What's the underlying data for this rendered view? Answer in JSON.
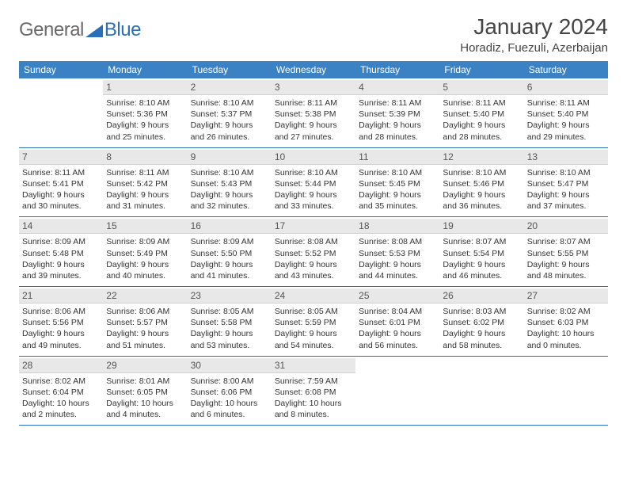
{
  "logo": {
    "part1": "General",
    "part2": "Blue"
  },
  "title": "January 2024",
  "location": "Horadiz, Fuezuli, Azerbaijan",
  "colors": {
    "header_bg": "#3b82c4",
    "header_text": "#ffffff",
    "daynum_bg": "#e8e8e8",
    "week_border": "#2a70b8",
    "logo_gray": "#6a6a6a",
    "logo_blue": "#2a70b8"
  },
  "typography": {
    "month_title_size": 28,
    "location_size": 15,
    "day_header_size": 12,
    "daynum_size": 12,
    "info_size": 10.5
  },
  "layout": {
    "columns": 7,
    "rows": 5
  },
  "day_names": [
    "Sunday",
    "Monday",
    "Tuesday",
    "Wednesday",
    "Thursday",
    "Friday",
    "Saturday"
  ],
  "weeks": [
    [
      {
        "n": "",
        "sr": "",
        "ss": "",
        "dl": ""
      },
      {
        "n": "1",
        "sr": "Sunrise: 8:10 AM",
        "ss": "Sunset: 5:36 PM",
        "dl": "Daylight: 9 hours and 25 minutes."
      },
      {
        "n": "2",
        "sr": "Sunrise: 8:10 AM",
        "ss": "Sunset: 5:37 PM",
        "dl": "Daylight: 9 hours and 26 minutes."
      },
      {
        "n": "3",
        "sr": "Sunrise: 8:11 AM",
        "ss": "Sunset: 5:38 PM",
        "dl": "Daylight: 9 hours and 27 minutes."
      },
      {
        "n": "4",
        "sr": "Sunrise: 8:11 AM",
        "ss": "Sunset: 5:39 PM",
        "dl": "Daylight: 9 hours and 28 minutes."
      },
      {
        "n": "5",
        "sr": "Sunrise: 8:11 AM",
        "ss": "Sunset: 5:40 PM",
        "dl": "Daylight: 9 hours and 28 minutes."
      },
      {
        "n": "6",
        "sr": "Sunrise: 8:11 AM",
        "ss": "Sunset: 5:40 PM",
        "dl": "Daylight: 9 hours and 29 minutes."
      }
    ],
    [
      {
        "n": "7",
        "sr": "Sunrise: 8:11 AM",
        "ss": "Sunset: 5:41 PM",
        "dl": "Daylight: 9 hours and 30 minutes."
      },
      {
        "n": "8",
        "sr": "Sunrise: 8:11 AM",
        "ss": "Sunset: 5:42 PM",
        "dl": "Daylight: 9 hours and 31 minutes."
      },
      {
        "n": "9",
        "sr": "Sunrise: 8:10 AM",
        "ss": "Sunset: 5:43 PM",
        "dl": "Daylight: 9 hours and 32 minutes."
      },
      {
        "n": "10",
        "sr": "Sunrise: 8:10 AM",
        "ss": "Sunset: 5:44 PM",
        "dl": "Daylight: 9 hours and 33 minutes."
      },
      {
        "n": "11",
        "sr": "Sunrise: 8:10 AM",
        "ss": "Sunset: 5:45 PM",
        "dl": "Daylight: 9 hours and 35 minutes."
      },
      {
        "n": "12",
        "sr": "Sunrise: 8:10 AM",
        "ss": "Sunset: 5:46 PM",
        "dl": "Daylight: 9 hours and 36 minutes."
      },
      {
        "n": "13",
        "sr": "Sunrise: 8:10 AM",
        "ss": "Sunset: 5:47 PM",
        "dl": "Daylight: 9 hours and 37 minutes."
      }
    ],
    [
      {
        "n": "14",
        "sr": "Sunrise: 8:09 AM",
        "ss": "Sunset: 5:48 PM",
        "dl": "Daylight: 9 hours and 39 minutes."
      },
      {
        "n": "15",
        "sr": "Sunrise: 8:09 AM",
        "ss": "Sunset: 5:49 PM",
        "dl": "Daylight: 9 hours and 40 minutes."
      },
      {
        "n": "16",
        "sr": "Sunrise: 8:09 AM",
        "ss": "Sunset: 5:50 PM",
        "dl": "Daylight: 9 hours and 41 minutes."
      },
      {
        "n": "17",
        "sr": "Sunrise: 8:08 AM",
        "ss": "Sunset: 5:52 PM",
        "dl": "Daylight: 9 hours and 43 minutes."
      },
      {
        "n": "18",
        "sr": "Sunrise: 8:08 AM",
        "ss": "Sunset: 5:53 PM",
        "dl": "Daylight: 9 hours and 44 minutes."
      },
      {
        "n": "19",
        "sr": "Sunrise: 8:07 AM",
        "ss": "Sunset: 5:54 PM",
        "dl": "Daylight: 9 hours and 46 minutes."
      },
      {
        "n": "20",
        "sr": "Sunrise: 8:07 AM",
        "ss": "Sunset: 5:55 PM",
        "dl": "Daylight: 9 hours and 48 minutes."
      }
    ],
    [
      {
        "n": "21",
        "sr": "Sunrise: 8:06 AM",
        "ss": "Sunset: 5:56 PM",
        "dl": "Daylight: 9 hours and 49 minutes."
      },
      {
        "n": "22",
        "sr": "Sunrise: 8:06 AM",
        "ss": "Sunset: 5:57 PM",
        "dl": "Daylight: 9 hours and 51 minutes."
      },
      {
        "n": "23",
        "sr": "Sunrise: 8:05 AM",
        "ss": "Sunset: 5:58 PM",
        "dl": "Daylight: 9 hours and 53 minutes."
      },
      {
        "n": "24",
        "sr": "Sunrise: 8:05 AM",
        "ss": "Sunset: 5:59 PM",
        "dl": "Daylight: 9 hours and 54 minutes."
      },
      {
        "n": "25",
        "sr": "Sunrise: 8:04 AM",
        "ss": "Sunset: 6:01 PM",
        "dl": "Daylight: 9 hours and 56 minutes."
      },
      {
        "n": "26",
        "sr": "Sunrise: 8:03 AM",
        "ss": "Sunset: 6:02 PM",
        "dl": "Daylight: 9 hours and 58 minutes."
      },
      {
        "n": "27",
        "sr": "Sunrise: 8:02 AM",
        "ss": "Sunset: 6:03 PM",
        "dl": "Daylight: 10 hours and 0 minutes."
      }
    ],
    [
      {
        "n": "28",
        "sr": "Sunrise: 8:02 AM",
        "ss": "Sunset: 6:04 PM",
        "dl": "Daylight: 10 hours and 2 minutes."
      },
      {
        "n": "29",
        "sr": "Sunrise: 8:01 AM",
        "ss": "Sunset: 6:05 PM",
        "dl": "Daylight: 10 hours and 4 minutes."
      },
      {
        "n": "30",
        "sr": "Sunrise: 8:00 AM",
        "ss": "Sunset: 6:06 PM",
        "dl": "Daylight: 10 hours and 6 minutes."
      },
      {
        "n": "31",
        "sr": "Sunrise: 7:59 AM",
        "ss": "Sunset: 6:08 PM",
        "dl": "Daylight: 10 hours and 8 minutes."
      },
      {
        "n": "",
        "sr": "",
        "ss": "",
        "dl": ""
      },
      {
        "n": "",
        "sr": "",
        "ss": "",
        "dl": ""
      },
      {
        "n": "",
        "sr": "",
        "ss": "",
        "dl": ""
      }
    ]
  ]
}
